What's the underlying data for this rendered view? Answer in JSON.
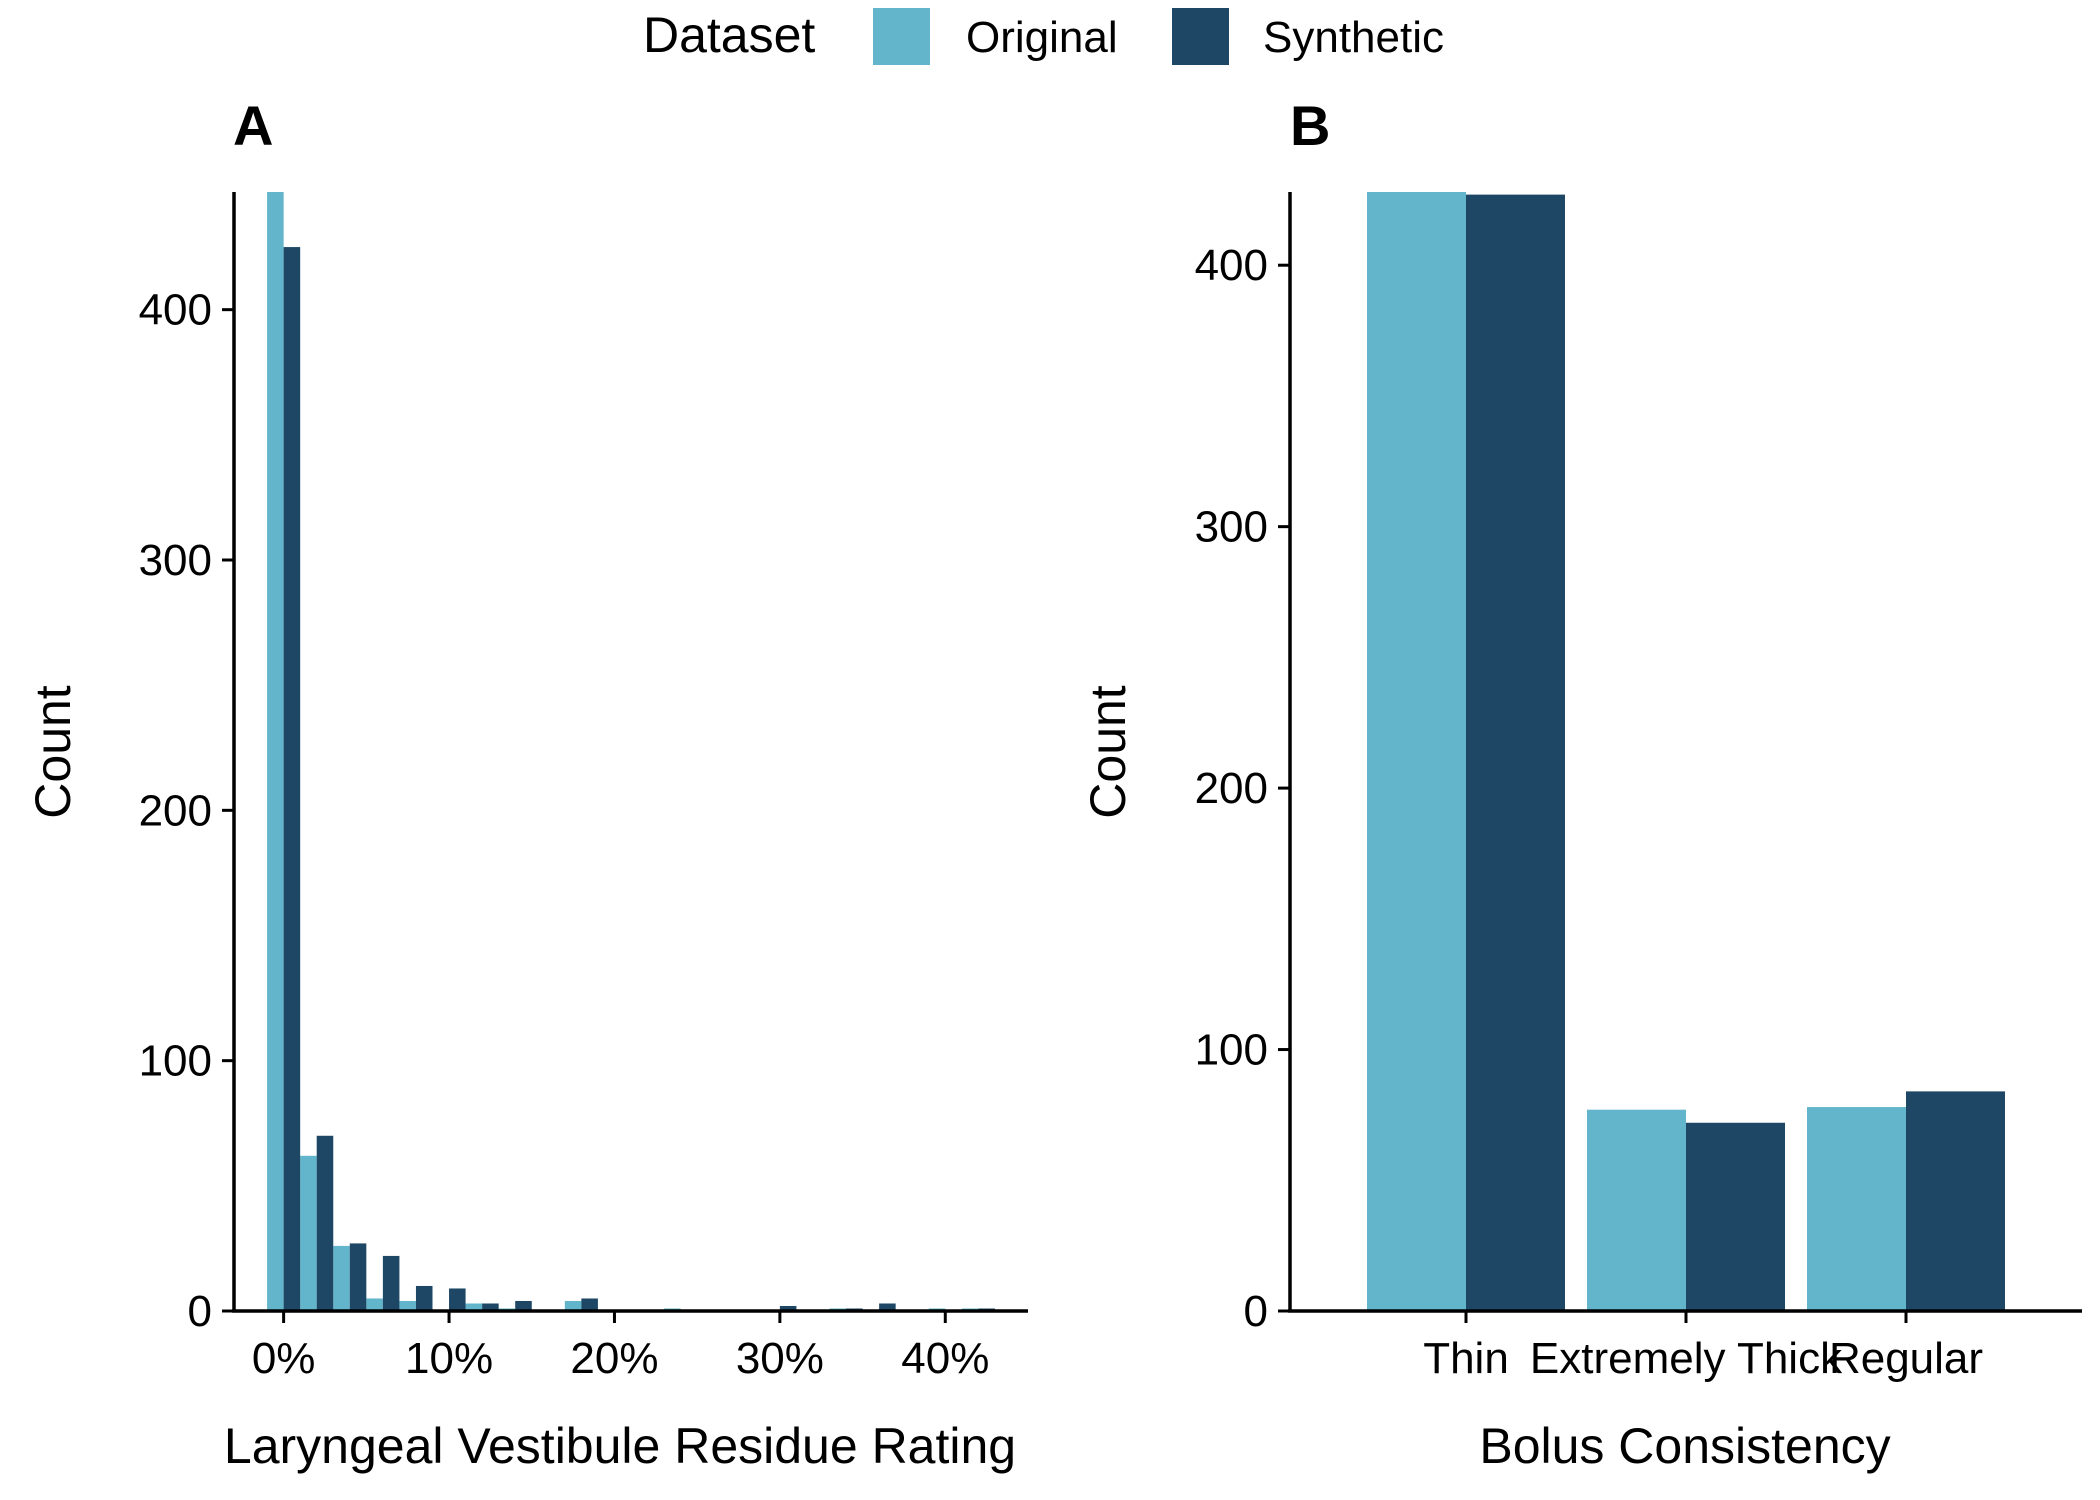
{
  "legend": {
    "title": "Dataset",
    "items": [
      {
        "label": "Original",
        "color": "#62B5CA"
      },
      {
        "label": "Synthetic",
        "color": "#1D4764"
      }
    ]
  },
  "chart_data": [
    {
      "panel_label": "A",
      "type": "bar",
      "subtype": "histogram",
      "xlabel": "Laryngeal Vestibule Residue Rating",
      "ylabel": "Count",
      "x_tick_labels": [
        "0%",
        "10%",
        "20%",
        "30%",
        "40%"
      ],
      "x_ticks": [
        0,
        10,
        20,
        30,
        40
      ],
      "y_ticks": [
        0,
        100,
        200,
        300,
        400
      ],
      "xlim": [
        -3,
        45
      ],
      "ylim": [
        0,
        447
      ],
      "bin_width": 2,
      "bin_centers": [
        0,
        2,
        4,
        6,
        8,
        10,
        12,
        14,
        16,
        18,
        20,
        22,
        24,
        26,
        28,
        30,
        32,
        34,
        36,
        38,
        40,
        42
      ],
      "series": [
        {
          "name": "Original",
          "color": "#62B5CA",
          "values": [
            447,
            62,
            26,
            5,
            4,
            0,
            3,
            1,
            0,
            4,
            0,
            0,
            1,
            0,
            0,
            0,
            0,
            1,
            0,
            0,
            1,
            1
          ]
        },
        {
          "name": "Synthetic",
          "color": "#1D4764",
          "values": [
            425,
            70,
            27,
            22,
            10,
            9,
            3,
            4,
            0,
            5,
            0,
            0,
            0,
            0,
            0,
            2,
            0,
            1,
            3,
            0,
            0,
            1
          ]
        }
      ],
      "grid": false
    },
    {
      "panel_label": "B",
      "type": "bar",
      "xlabel": "Bolus Consistency",
      "ylabel": "Count",
      "categories": [
        "Thin",
        "Extremely Thick",
        "Regular"
      ],
      "y_ticks": [
        0,
        100,
        200,
        300,
        400
      ],
      "ylim": [
        0,
        428
      ],
      "series": [
        {
          "name": "Original",
          "color": "#62B5CA",
          "values": [
            428,
            77,
            78
          ]
        },
        {
          "name": "Synthetic",
          "color": "#1D4764",
          "values": [
            427,
            72,
            84
          ]
        }
      ],
      "grid": false
    }
  ]
}
